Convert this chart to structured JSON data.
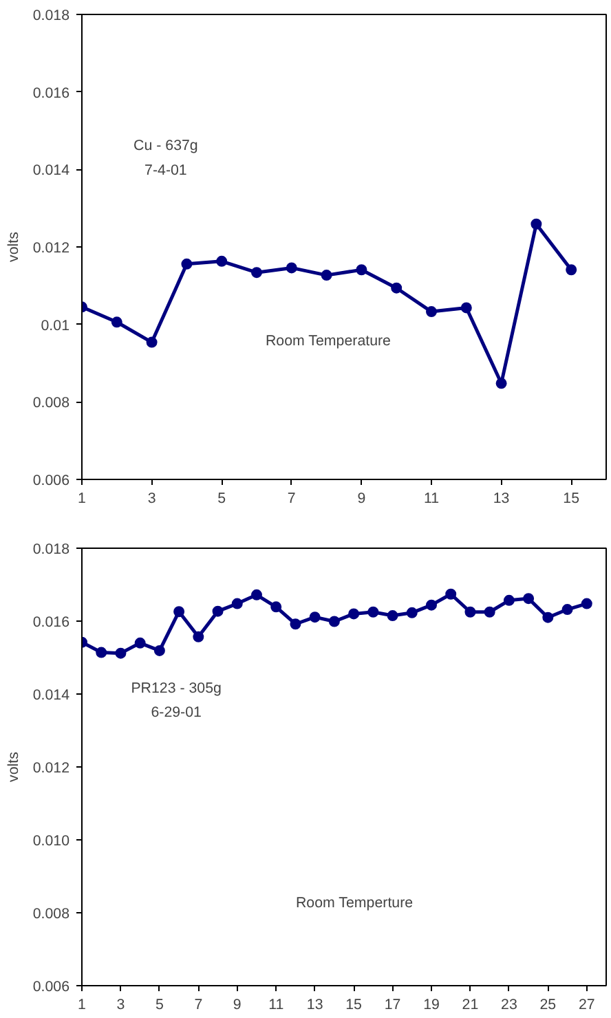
{
  "chart_data": [
    {
      "type": "line",
      "ylabel": "volts",
      "x": [
        1,
        2,
        3,
        4,
        5,
        6,
        7,
        8,
        9,
        10,
        11,
        12,
        13,
        14,
        15
      ],
      "series": [
        {
          "color": "#000080",
          "values": [
            0.01045,
            0.01006,
            0.00954,
            0.01156,
            0.01163,
            0.01134,
            0.01146,
            0.01127,
            0.01141,
            0.01094,
            0.01033,
            0.01043,
            0.00848,
            0.01259,
            0.01141
          ]
        }
      ],
      "xlim": [
        1,
        16
      ],
      "xticks": [
        1,
        3,
        5,
        7,
        9,
        11,
        13,
        15
      ],
      "ylim": [
        0.006,
        0.018
      ],
      "yticks": [
        0.006,
        0.008,
        0.01,
        0.012,
        0.014,
        0.016,
        0.018
      ],
      "annotations": [
        "Cu - 637g",
        "7-4-01",
        "Room Temperature"
      ],
      "grid": false,
      "marker": "circle",
      "line_style": "solid"
    },
    {
      "type": "line",
      "ylabel": "volts",
      "x": [
        1,
        2,
        3,
        4,
        5,
        6,
        7,
        8,
        9,
        10,
        11,
        12,
        13,
        14,
        15,
        16,
        17,
        18,
        19,
        20,
        21,
        22,
        23,
        24,
        25,
        26,
        27
      ],
      "series": [
        {
          "color": "#000080",
          "values": [
            0.01542,
            0.01514,
            0.01512,
            0.0154,
            0.01519,
            0.01626,
            0.01557,
            0.01627,
            0.01648,
            0.01672,
            0.01639,
            0.01592,
            0.01611,
            0.01599,
            0.0162,
            0.01625,
            0.01615,
            0.01623,
            0.01644,
            0.01674,
            0.01625,
            0.01625,
            0.01657,
            0.01662,
            0.0161,
            0.01632,
            0.01648
          ]
        }
      ],
      "xlim": [
        1,
        28
      ],
      "xticks": [
        1,
        3,
        5,
        7,
        9,
        11,
        13,
        15,
        17,
        19,
        21,
        23,
        25,
        27
      ],
      "ylim": [
        0.006,
        0.018
      ],
      "yticks": [
        {
          "value": 0.006,
          "label": "0.006"
        },
        {
          "value": 0.008,
          "label": "0.008"
        },
        {
          "value": 0.01,
          "label": "0.010"
        },
        {
          "value": 0.012,
          "label": "0.012"
        },
        {
          "value": 0.014,
          "label": "0.014"
        },
        {
          "value": 0.016,
          "label": "0.016"
        },
        {
          "value": 0.018,
          "label": "0.018"
        }
      ],
      "annotations": [
        "PR123 - 305g",
        "6-29-01",
        "Room Temperture"
      ],
      "grid": false,
      "marker": "circle",
      "line_style": "solid"
    }
  ]
}
